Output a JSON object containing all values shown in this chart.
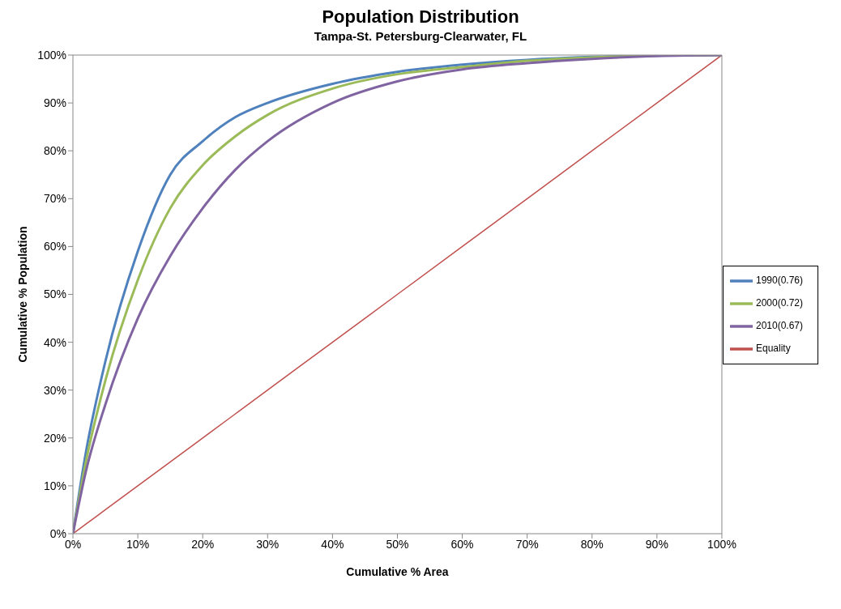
{
  "chart_data": {
    "type": "line",
    "title": "Population Distribution",
    "subtitle": "Tampa-St. Petersburg-Clearwater, FL",
    "xlabel": "Cumulative % Area",
    "ylabel": "Cumulative % Population",
    "x": [
      0,
      2,
      5,
      10,
      15,
      20,
      25,
      30,
      40,
      50,
      60,
      70,
      80,
      90,
      100
    ],
    "series": [
      {
        "name": "Equality",
        "color": "#c0504d",
        "values": [
          0,
          2,
          5,
          10,
          15,
          20,
          25,
          30,
          40,
          50,
          60,
          70,
          80,
          90,
          100
        ]
      },
      {
        "name": "1990(0.76)",
        "color": "#4f81bd",
        "values": [
          0,
          17,
          36,
          59,
          75,
          82,
          87,
          90,
          94,
          96.5,
          98,
          99,
          99.6,
          99.9,
          100
        ]
      },
      {
        "name": "2000(0.72)",
        "color": "#9bbb59",
        "values": [
          0,
          15,
          32,
          53,
          68,
          77,
          83,
          87.5,
          93,
          96,
          97.5,
          98.8,
          99.5,
          99.9,
          100
        ]
      },
      {
        "name": "2010(0.67)",
        "color": "#8064a2",
        "values": [
          0,
          13,
          27,
          45,
          58,
          68,
          76,
          82,
          90,
          94.5,
          97,
          98.3,
          99.2,
          99.8,
          100
        ]
      }
    ],
    "xlim": [
      0,
      100
    ],
    "xticks": [
      {
        "value": 0,
        "label": "0%"
      },
      {
        "value": 10,
        "label": "10%"
      },
      {
        "value": 20,
        "label": "20%"
      },
      {
        "value": 30,
        "label": "30%"
      },
      {
        "value": 40,
        "label": "40%"
      },
      {
        "value": 50,
        "label": "50%"
      },
      {
        "value": 60,
        "label": "60%"
      },
      {
        "value": 70,
        "label": "70%"
      },
      {
        "value": 80,
        "label": "80%"
      },
      {
        "value": 90,
        "label": "90%"
      },
      {
        "value": 100,
        "label": "100%"
      }
    ],
    "ylim": [
      0,
      100
    ],
    "yticks": [
      {
        "value": 0,
        "label": "0%"
      },
      {
        "value": 10,
        "label": "10%"
      },
      {
        "value": 20,
        "label": "20%"
      },
      {
        "value": 30,
        "label": "30%"
      },
      {
        "value": 40,
        "label": "40%"
      },
      {
        "value": 50,
        "label": "50%"
      },
      {
        "value": 60,
        "label": "60%"
      },
      {
        "value": 70,
        "label": "70%"
      },
      {
        "value": 80,
        "label": "80%"
      },
      {
        "value": 90,
        "label": "90%"
      },
      {
        "value": 100,
        "label": "100%"
      }
    ],
    "grid": false,
    "legend": "right",
    "marker": "none",
    "line_style": "solid"
  }
}
